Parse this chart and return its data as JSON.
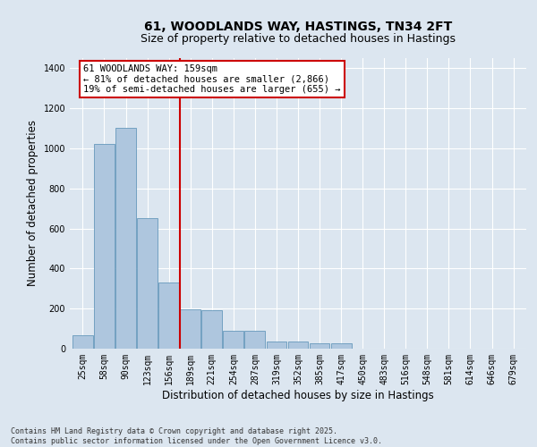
{
  "title": "61, WOODLANDS WAY, HASTINGS, TN34 2FT",
  "subtitle": "Size of property relative to detached houses in Hastings",
  "xlabel": "Distribution of detached houses by size in Hastings",
  "ylabel": "Number of detached properties",
  "categories": [
    "25sqm",
    "58sqm",
    "90sqm",
    "123sqm",
    "156sqm",
    "189sqm",
    "221sqm",
    "254sqm",
    "287sqm",
    "319sqm",
    "352sqm",
    "385sqm",
    "417sqm",
    "450sqm",
    "483sqm",
    "516sqm",
    "548sqm",
    "581sqm",
    "614sqm",
    "646sqm",
    "679sqm"
  ],
  "values": [
    65,
    1020,
    1100,
    650,
    330,
    195,
    190,
    90,
    90,
    35,
    35,
    25,
    25,
    0,
    0,
    0,
    0,
    0,
    0,
    0,
    0
  ],
  "bar_color": "#aec6de",
  "bar_edge_color": "#6699bb",
  "background_color": "#dce6f0",
  "plot_bg_color": "#dce6f0",
  "grid_color": "#ffffff",
  "vline_x": 4.5,
  "vline_color": "#cc0000",
  "annotation_line1": "61 WOODLANDS WAY: 159sqm",
  "annotation_line2": "← 81% of detached houses are smaller (2,866)",
  "annotation_line3": "19% of semi-detached houses are larger (655) →",
  "annotation_box_color": "#ffffff",
  "annotation_edge_color": "#cc0000",
  "ylim": [
    0,
    1450
  ],
  "yticks": [
    0,
    200,
    400,
    600,
    800,
    1000,
    1200,
    1400
  ],
  "footnote": "Contains HM Land Registry data © Crown copyright and database right 2025.\nContains public sector information licensed under the Open Government Licence v3.0.",
  "title_fontsize": 10,
  "subtitle_fontsize": 9,
  "tick_fontsize": 7,
  "label_fontsize": 8.5,
  "annot_fontsize": 7.5,
  "footnote_fontsize": 6
}
